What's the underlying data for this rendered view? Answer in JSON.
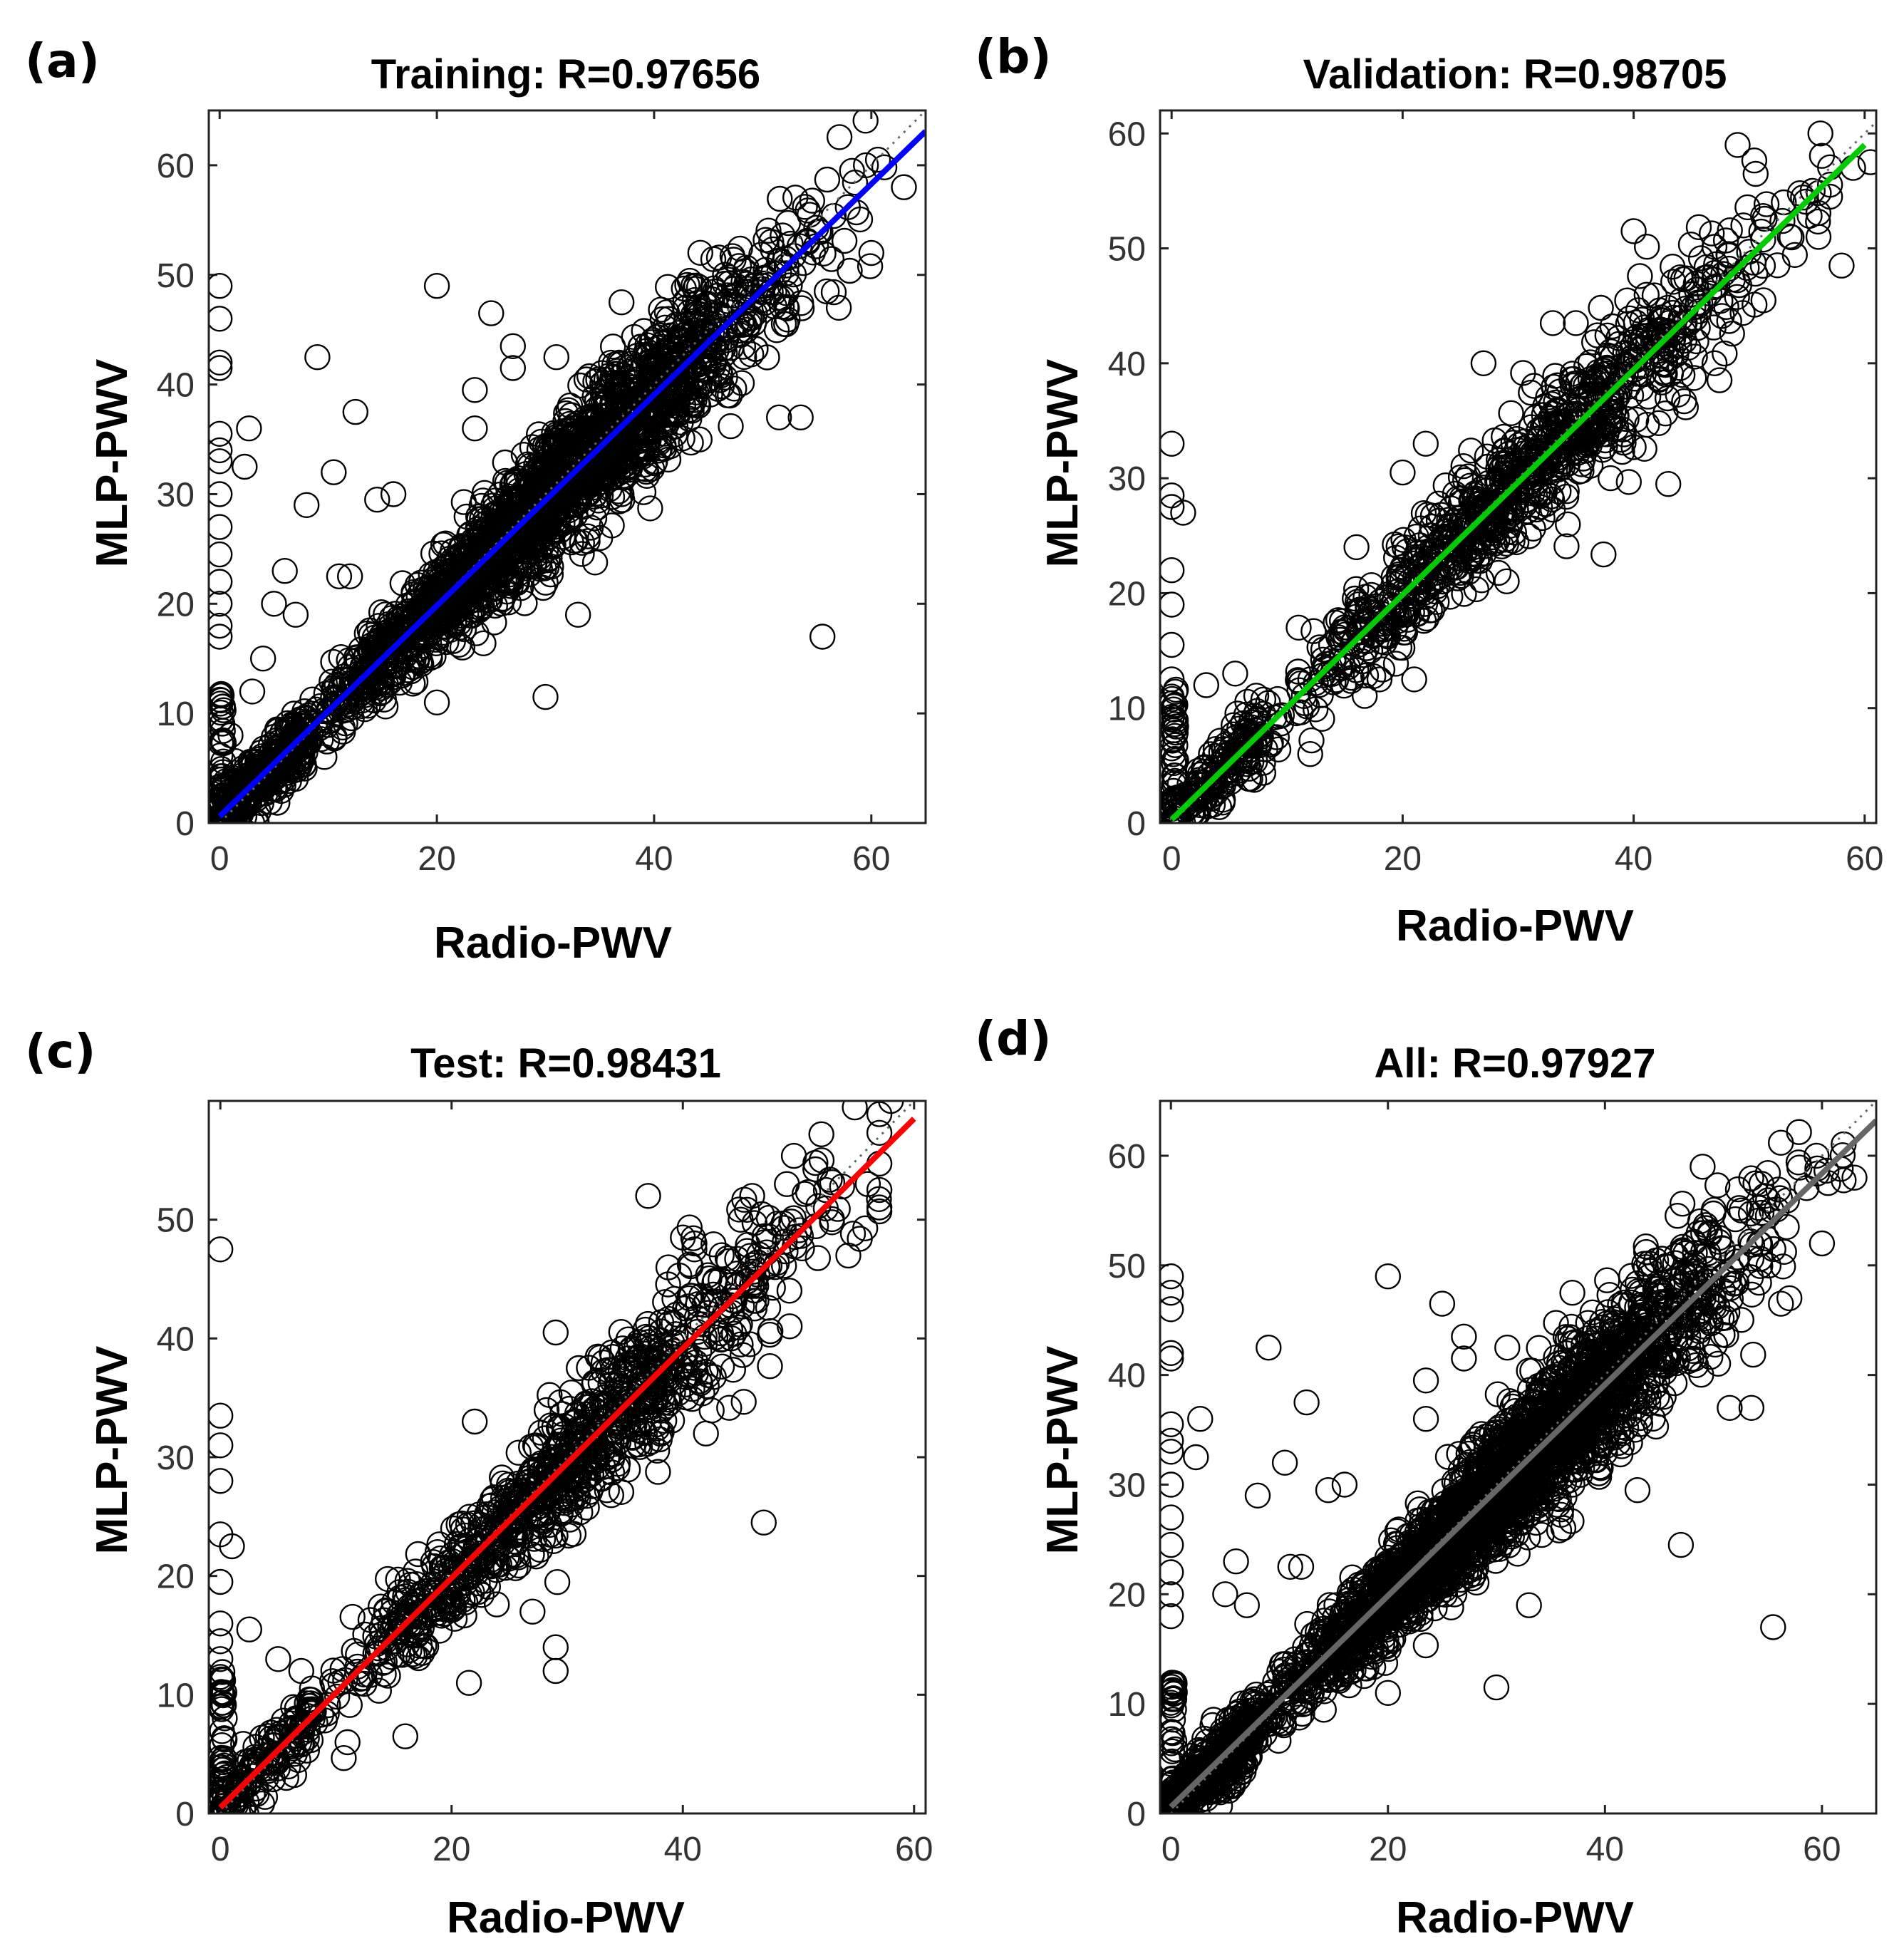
{
  "chart_data": [
    {
      "panel": "(a)",
      "type": "scatter",
      "title": "Training: R=0.97656",
      "xlabel": "Radio-PWV",
      "ylabel": "MLP-PWV",
      "xlim": [
        -1,
        65
      ],
      "ylim": [
        0,
        65
      ],
      "xticks": [
        0,
        20,
        40,
        60
      ],
      "yticks": [
        0,
        10,
        20,
        30,
        40,
        50,
        60
      ],
      "fit_color": "#0000ff",
      "fit_line": {
        "x": [
          0,
          65
        ],
        "y": [
          0.6,
          63.1
        ]
      },
      "identity_line": true,
      "n_points": 2400,
      "r": 0.97656,
      "outliers": [
        [
          0,
          49
        ],
        [
          0,
          46
        ],
        [
          0,
          42
        ],
        [
          0,
          41.5
        ],
        [
          0,
          35.5
        ],
        [
          0,
          34
        ],
        [
          0,
          33
        ],
        [
          0,
          30
        ],
        [
          0,
          27
        ],
        [
          0,
          24.5
        ],
        [
          0,
          22
        ],
        [
          0,
          20
        ],
        [
          0,
          18
        ],
        [
          0,
          17
        ],
        [
          2.7,
          36
        ],
        [
          2.3,
          32.5
        ],
        [
          9,
          42.5
        ],
        [
          12.5,
          37.5
        ],
        [
          10.5,
          32
        ],
        [
          20,
          49
        ],
        [
          23.5,
          39.5
        ],
        [
          25,
          46.5
        ],
        [
          27,
          43.5
        ],
        [
          27,
          41.5
        ],
        [
          23.5,
          36
        ],
        [
          14.5,
          29.5
        ],
        [
          8,
          29
        ],
        [
          16,
          30
        ],
        [
          55.5,
          17
        ],
        [
          30,
          11.5
        ],
        [
          33,
          19
        ],
        [
          37,
          30
        ],
        [
          51.5,
          37
        ],
        [
          53.5,
          37
        ],
        [
          37,
          47.5
        ],
        [
          31,
          42.5
        ],
        [
          59.5,
          60
        ],
        [
          57,
          47
        ],
        [
          60,
          52
        ],
        [
          63,
          58
        ],
        [
          20,
          11
        ],
        [
          11,
          22.5
        ],
        [
          12,
          22.5
        ],
        [
          6,
          23
        ],
        [
          5,
          20
        ],
        [
          7,
          19
        ],
        [
          3,
          12
        ],
        [
          4,
          15
        ],
        [
          1,
          8
        ]
      ]
    },
    {
      "panel": "(b)",
      "type": "scatter",
      "title": "Validation: R=0.98705",
      "xlabel": "Radio-PWV",
      "ylabel": "MLP-PWV",
      "xlim": [
        -1,
        61
      ],
      "ylim": [
        0,
        62
      ],
      "xticks": [
        0,
        20,
        40,
        60
      ],
      "yticks": [
        0,
        10,
        20,
        30,
        40,
        50,
        60
      ],
      "fit_color": "#00cc00",
      "fit_line": {
        "x": [
          0,
          60
        ],
        "y": [
          0.3,
          59
        ]
      },
      "identity_line": true,
      "n_points": 1100,
      "r": 0.98705,
      "outliers": [
        [
          0,
          33
        ],
        [
          0,
          28.5
        ],
        [
          0,
          27.5
        ],
        [
          1,
          27
        ],
        [
          0,
          22
        ],
        [
          0,
          19
        ],
        [
          0,
          15.5
        ],
        [
          0,
          12.5
        ],
        [
          0,
          11
        ],
        [
          0,
          9
        ],
        [
          0,
          6.5
        ],
        [
          5.5,
          13
        ],
        [
          3,
          12
        ],
        [
          11,
          17
        ],
        [
          18,
          12.5
        ],
        [
          12,
          6
        ],
        [
          21,
          12.5
        ],
        [
          16,
          24
        ],
        [
          20,
          30.5
        ],
        [
          22,
          33
        ],
        [
          27,
          40
        ],
        [
          33,
          43.5
        ],
        [
          35,
          43.5
        ],
        [
          40,
          51.5
        ],
        [
          43,
          29.5
        ],
        [
          38,
          30
        ],
        [
          49,
          59
        ],
        [
          53,
          54
        ],
        [
          55.5,
          55
        ],
        [
          58,
          48.5
        ],
        [
          59,
          57
        ],
        [
          60.5,
          57.5
        ],
        [
          56,
          51
        ],
        [
          49.5,
          52
        ],
        [
          45,
          46
        ],
        [
          47,
          40
        ]
      ]
    },
    {
      "panel": "(c)",
      "type": "scatter",
      "title": "Test: R=0.98431",
      "xlabel": "Radio-PWV",
      "ylabel": "MLP-PWV",
      "xlim": [
        -1,
        61
      ],
      "ylim": [
        0,
        60
      ],
      "xticks": [
        0,
        20,
        40,
        60
      ],
      "yticks": [
        0,
        10,
        20,
        30,
        40,
        50
      ],
      "fit_color": "#ff0000",
      "fit_line": {
        "x": [
          0,
          60
        ],
        "y": [
          0.5,
          58.5
        ]
      },
      "identity_line": true,
      "n_points": 1100,
      "r": 0.98431,
      "outliers": [
        [
          0,
          47.5
        ],
        [
          0,
          33.5
        ],
        [
          0,
          31
        ],
        [
          0,
          28
        ],
        [
          0,
          23.5
        ],
        [
          1,
          22.5
        ],
        [
          0,
          19.5
        ],
        [
          0,
          16
        ],
        [
          0,
          14.5
        ],
        [
          0,
          13
        ],
        [
          0,
          11.5
        ],
        [
          2.5,
          15.5
        ],
        [
          5,
          13
        ],
        [
          7,
          12
        ],
        [
          11,
          6
        ],
        [
          16,
          6.5
        ],
        [
          21.5,
          11
        ],
        [
          27,
          17
        ],
        [
          29,
          12
        ],
        [
          29,
          14
        ],
        [
          22,
          33
        ],
        [
          29,
          40.5
        ],
        [
          31,
          37.5
        ],
        [
          37,
          52
        ],
        [
          40,
          48.5
        ],
        [
          41,
          48
        ],
        [
          41,
          47.5
        ],
        [
          45,
          50
        ],
        [
          46,
          52
        ],
        [
          45,
          39.5
        ],
        [
          47,
          24.5
        ],
        [
          38,
          31.5
        ],
        [
          42,
          32
        ],
        [
          52,
          55
        ],
        [
          56,
          53
        ],
        [
          58,
          60
        ],
        [
          49,
          53
        ],
        [
          57,
          52.5
        ]
      ]
    },
    {
      "panel": "(d)",
      "type": "scatter",
      "title": "All: R=0.97927",
      "xlabel": "Radio-PWV",
      "ylabel": "MLP-PWV",
      "xlim": [
        -1,
        65
      ],
      "ylim": [
        0,
        65
      ],
      "xticks": [
        0,
        20,
        40,
        60
      ],
      "yticks": [
        0,
        10,
        20,
        30,
        40,
        50,
        60
      ],
      "fit_color": "#666666",
      "fit_line": {
        "x": [
          0,
          65
        ],
        "y": [
          0.6,
          63.2
        ]
      },
      "identity_line": true,
      "n_points": 3000,
      "r": 0.97927,
      "outliers": [
        [
          0,
          49
        ],
        [
          0,
          47.5
        ],
        [
          0,
          46
        ],
        [
          0,
          42
        ],
        [
          0,
          41.5
        ],
        [
          0,
          35.5
        ],
        [
          0,
          34
        ],
        [
          0,
          33
        ],
        [
          0,
          30
        ],
        [
          0,
          27
        ],
        [
          0,
          24.5
        ],
        [
          0,
          22
        ],
        [
          0,
          20
        ],
        [
          0,
          18
        ],
        [
          2.7,
          36
        ],
        [
          2.3,
          32.5
        ],
        [
          9,
          42.5
        ],
        [
          12.5,
          37.5
        ],
        [
          10.5,
          32
        ],
        [
          20,
          49
        ],
        [
          23.5,
          39.5
        ],
        [
          25,
          46.5
        ],
        [
          27,
          43.5
        ],
        [
          27,
          41.5
        ],
        [
          23.5,
          36
        ],
        [
          14.5,
          29.5
        ],
        [
          8,
          29
        ],
        [
          16,
          30
        ],
        [
          55.5,
          17
        ],
        [
          30,
          11.5
        ],
        [
          33,
          19
        ],
        [
          37,
          30
        ],
        [
          51.5,
          37
        ],
        [
          53.5,
          37
        ],
        [
          37,
          47.5
        ],
        [
          31,
          42.5
        ],
        [
          59.5,
          60
        ],
        [
          57,
          47
        ],
        [
          60,
          52
        ],
        [
          63,
          58
        ],
        [
          20,
          11
        ],
        [
          11,
          22.5
        ],
        [
          12,
          22.5
        ],
        [
          6,
          23
        ],
        [
          5,
          20
        ],
        [
          7,
          19
        ],
        [
          47,
          24.5
        ],
        [
          49,
          59
        ],
        [
          43,
          29.5
        ]
      ]
    }
  ]
}
